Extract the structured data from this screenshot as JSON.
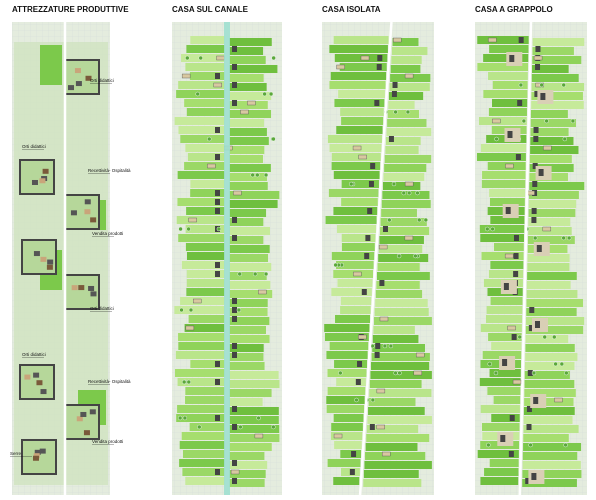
{
  "columns": [
    {
      "title": "ATTREZZATURE PRODUTTIVE",
      "labels": [
        "Orti didattici",
        "Orti didattici",
        "Recettività- Ospitalità",
        "Vendita prodotti",
        "Orti didattici",
        "Orti didattici",
        "Recettività- Ospitalità",
        "Vendita prodotti",
        "Serre"
      ]
    },
    {
      "title": "CASA SUL CANALE"
    },
    {
      "title": "CASA ISOLATA"
    },
    {
      "title": "CASA A GRAPPOLO"
    }
  ]
}
